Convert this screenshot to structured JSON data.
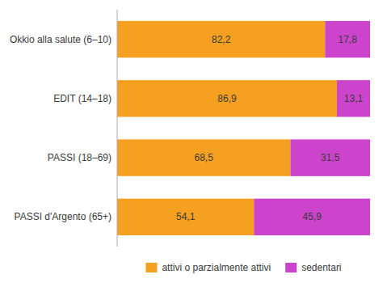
{
  "chart_data": {
    "type": "bar",
    "orientation": "horizontal",
    "stacked": true,
    "data_labels": true,
    "tick_labels": "y",
    "grid": false,
    "legend": "bottom",
    "categories": [
      "Okkio alla salute (6–10)",
      "EDIT (14–18)",
      "PASSI (18–69)",
      "PASSI d'Argento (65+)"
    ],
    "xlim": [
      0,
      100
    ],
    "series": [
      {
        "name": "attivi o parzialmente attivi",
        "color": "#F5A020",
        "values": [
          82.2,
          86.9,
          68.5,
          54.1
        ],
        "value_labels": [
          "82,2",
          "86,9",
          "68,5",
          "54,1"
        ]
      },
      {
        "name": "sedentari",
        "color": "#CC44CC",
        "values": [
          17.8,
          13.1,
          31.5,
          45.9
        ],
        "value_labels": [
          "17,8",
          "13,1",
          "31,5",
          "45,9"
        ]
      }
    ]
  }
}
